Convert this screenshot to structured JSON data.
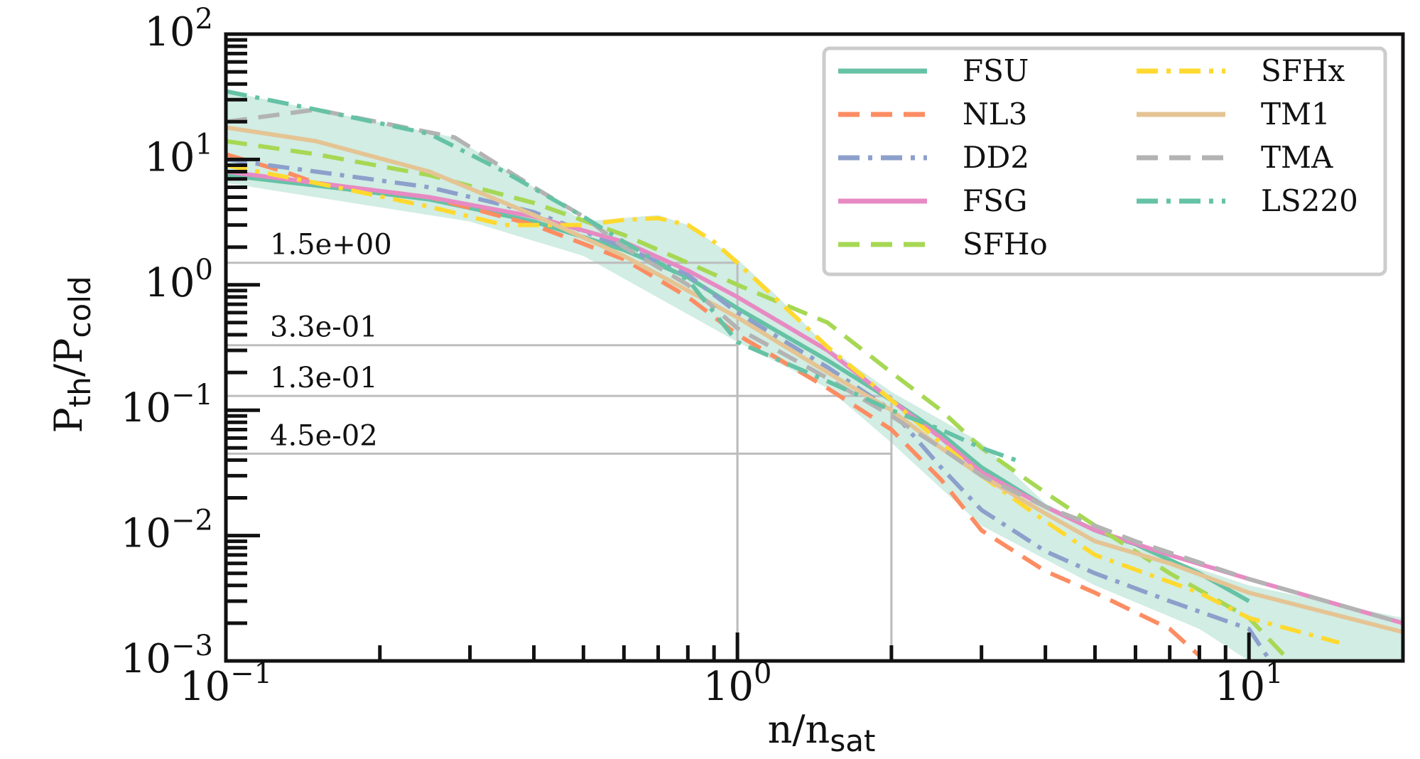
{
  "chart_data": {
    "type": "line",
    "xscale": "log",
    "yscale": "log",
    "xlim": [
      0.1,
      20
    ],
    "ylim": [
      0.001,
      100
    ],
    "xlabel_main": "n/n",
    "xlabel_sub": "sat",
    "ylabel_main": "P",
    "ylabel_sub1": "th",
    "ylabel_mid": "/P",
    "ylabel_sub2": "cold",
    "x_ticks": [
      {
        "value": 0.1,
        "base": "10",
        "exp": "−1"
      },
      {
        "value": 1,
        "base": "10",
        "exp": "0"
      },
      {
        "value": 10,
        "base": "10",
        "exp": "1"
      }
    ],
    "y_ticks": [
      {
        "value": 0.001,
        "base": "10",
        "exp": "−3"
      },
      {
        "value": 0.01,
        "base": "10",
        "exp": "−2"
      },
      {
        "value": 0.1,
        "base": "10",
        "exp": "−1"
      },
      {
        "value": 1,
        "base": "10",
        "exp": "0"
      },
      {
        "value": 10,
        "base": "10",
        "exp": "1"
      },
      {
        "value": 100,
        "base": "10",
        "exp": "2"
      }
    ],
    "reference_lines": [
      {
        "x": 1,
        "y": 1.5,
        "label": "1.5e+00"
      },
      {
        "x": 1,
        "y": 0.33,
        "label": "3.3e-01"
      },
      {
        "x": 2,
        "y": 0.13,
        "label": "1.3e-01"
      },
      {
        "x": 2,
        "y": 0.045,
        "label": "4.5e-02"
      }
    ],
    "legend_position": "top-right",
    "band": {
      "color": "#66c2a5",
      "opacity": 0.3,
      "upper": [
        [
          0.1,
          35
        ],
        [
          0.15,
          25
        ],
        [
          0.28,
          15
        ],
        [
          0.4,
          6
        ],
        [
          0.5,
          3.2
        ],
        [
          0.7,
          3.6
        ],
        [
          0.8,
          3.0
        ],
        [
          1.0,
          1.6
        ],
        [
          1.2,
          0.8
        ],
        [
          1.5,
          0.32
        ],
        [
          2,
          0.14
        ],
        [
          3,
          0.055
        ],
        [
          4,
          0.018
        ],
        [
          6,
          0.008
        ],
        [
          10,
          0.004
        ],
        [
          20,
          0.0022
        ]
      ],
      "lower": [
        [
          0.1,
          6.5
        ],
        [
          0.15,
          5.0
        ],
        [
          0.3,
          3.2
        ],
        [
          0.5,
          1.7
        ],
        [
          1.0,
          0.35
        ],
        [
          1.5,
          0.15
        ],
        [
          2,
          0.055
        ],
        [
          3,
          0.012
        ],
        [
          5,
          0.004
        ],
        [
          8,
          0.0018
        ],
        [
          10,
          0.001
        ],
        [
          20,
          0.001
        ]
      ]
    },
    "series": [
      {
        "name": "FSU",
        "color": "#66c2a5",
        "dash": "solid",
        "points": [
          [
            0.1,
            7.5
          ],
          [
            0.15,
            6.2
          ],
          [
            0.25,
            4.8
          ],
          [
            0.4,
            3.2
          ],
          [
            0.6,
            1.9
          ],
          [
            0.8,
            1.15
          ],
          [
            1,
            0.65
          ],
          [
            1.5,
            0.25
          ],
          [
            2,
            0.12
          ],
          [
            2.5,
            0.065
          ],
          [
            3,
            0.035
          ],
          [
            4,
            0.017
          ],
          [
            5,
            0.011
          ],
          [
            6,
            0.0085
          ],
          [
            8,
            0.005
          ],
          [
            10,
            0.003
          ]
        ]
      },
      {
        "name": "NL3",
        "color": "#fc8d62",
        "dash": "dashed",
        "points": [
          [
            0.1,
            11
          ],
          [
            0.13,
            8
          ],
          [
            0.15,
            6.5
          ],
          [
            0.25,
            5.0
          ],
          [
            0.4,
            3.0
          ],
          [
            0.6,
            1.6
          ],
          [
            0.8,
            0.8
          ],
          [
            1,
            0.4
          ],
          [
            1.5,
            0.15
          ],
          [
            2,
            0.07
          ],
          [
            2.5,
            0.028
          ],
          [
            3,
            0.011
          ],
          [
            4,
            0.0052
          ],
          [
            5,
            0.0035
          ],
          [
            7,
            0.0018
          ],
          [
            8,
            0.0011
          ]
        ]
      },
      {
        "name": "DD2",
        "color": "#8da0cb",
        "dash": "dashdot",
        "points": [
          [
            0.1,
            10
          ],
          [
            0.15,
            8
          ],
          [
            0.25,
            6
          ],
          [
            0.4,
            3.8
          ],
          [
            0.6,
            2.0
          ],
          [
            0.8,
            1.2
          ],
          [
            1,
            0.6
          ],
          [
            1.5,
            0.22
          ],
          [
            2,
            0.1
          ],
          [
            2.5,
            0.035
          ],
          [
            3,
            0.016
          ],
          [
            4,
            0.0075
          ],
          [
            5,
            0.005
          ],
          [
            7,
            0.003
          ],
          [
            10,
            0.0018
          ],
          [
            11,
            0.001
          ]
        ]
      },
      {
        "name": "FSG",
        "color": "#e78ac3",
        "dash": "solid",
        "points": [
          [
            0.1,
            8
          ],
          [
            0.15,
            6.5
          ],
          [
            0.25,
            5.0
          ],
          [
            0.4,
            3.5
          ],
          [
            0.6,
            2.2
          ],
          [
            0.8,
            1.3
          ],
          [
            1,
            0.8
          ],
          [
            1.5,
            0.3
          ],
          [
            2,
            0.12
          ],
          [
            2.5,
            0.06
          ],
          [
            3,
            0.032
          ],
          [
            4,
            0.017
          ],
          [
            5,
            0.011
          ],
          [
            7,
            0.007
          ],
          [
            10,
            0.0045
          ],
          [
            20,
            0.002
          ]
        ]
      },
      {
        "name": "SFHo",
        "color": "#a6d854",
        "dash": "dashed",
        "points": [
          [
            0.1,
            14
          ],
          [
            0.15,
            11
          ],
          [
            0.25,
            7.5
          ],
          [
            0.4,
            4.5
          ],
          [
            0.6,
            2.5
          ],
          [
            0.8,
            1.5
          ],
          [
            1,
            1.0
          ],
          [
            1.5,
            0.5
          ],
          [
            2,
            0.2
          ],
          [
            2.5,
            0.1
          ],
          [
            3,
            0.05
          ],
          [
            4,
            0.022
          ],
          [
            5,
            0.012
          ],
          [
            7,
            0.005
          ],
          [
            10,
            0.0022
          ],
          [
            12,
            0.001
          ]
        ]
      },
      {
        "name": "SFHx",
        "color": "#ffd92f",
        "dash": "dashdot",
        "points": [
          [
            0.1,
            9
          ],
          [
            0.15,
            6.5
          ],
          [
            0.25,
            4.2
          ],
          [
            0.35,
            3.0
          ],
          [
            0.5,
            3.0
          ],
          [
            0.6,
            3.3
          ],
          [
            0.7,
            3.4
          ],
          [
            0.8,
            3.0
          ],
          [
            0.9,
            2.2
          ],
          [
            1,
            1.5
          ],
          [
            1.2,
            0.75
          ],
          [
            1.5,
            0.32
          ],
          [
            2,
            0.12
          ],
          [
            2.5,
            0.055
          ],
          [
            3,
            0.03
          ],
          [
            4,
            0.013
          ],
          [
            5,
            0.007
          ],
          [
            8,
            0.0035
          ],
          [
            10,
            0.0022
          ],
          [
            15,
            0.0014
          ]
        ]
      },
      {
        "name": "TM1",
        "color": "#e5c494",
        "dash": "solid",
        "points": [
          [
            0.1,
            18
          ],
          [
            0.15,
            14
          ],
          [
            0.25,
            8
          ],
          [
            0.4,
            3.6
          ],
          [
            0.6,
            1.7
          ],
          [
            0.8,
            0.9
          ],
          [
            1,
            0.55
          ],
          [
            1.5,
            0.2
          ],
          [
            2,
            0.1
          ],
          [
            2.5,
            0.05
          ],
          [
            3,
            0.03
          ],
          [
            4,
            0.015
          ],
          [
            5,
            0.009
          ],
          [
            7,
            0.006
          ],
          [
            10,
            0.0035
          ],
          [
            20,
            0.0017
          ]
        ]
      },
      {
        "name": "TMA",
        "color": "#b3b3b3",
        "dash": "dashed",
        "points": [
          [
            0.1,
            20
          ],
          [
            0.15,
            25
          ],
          [
            0.28,
            15
          ],
          [
            0.4,
            6
          ],
          [
            0.5,
            3.5
          ],
          [
            0.6,
            2.0
          ],
          [
            0.8,
            1.0
          ],
          [
            1,
            0.45
          ],
          [
            1.5,
            0.18
          ],
          [
            2,
            0.09
          ],
          [
            2.5,
            0.05
          ],
          [
            3,
            0.03
          ],
          [
            4,
            0.017
          ],
          [
            6,
            0.009
          ],
          [
            10,
            0.0045
          ],
          [
            20,
            0.002
          ]
        ]
      },
      {
        "name": "LS220",
        "color": "#66c2a5",
        "dash": "dashdot",
        "points": [
          [
            0.1,
            35
          ],
          [
            0.15,
            25
          ],
          [
            0.25,
            16
          ],
          [
            0.35,
            8
          ],
          [
            0.5,
            3.5
          ],
          [
            0.6,
            2.2
          ],
          [
            0.8,
            1.1
          ],
          [
            1,
            0.35
          ],
          [
            1.5,
            0.17
          ],
          [
            2,
            0.1
          ],
          [
            2.5,
            0.07
          ],
          [
            3,
            0.05
          ],
          [
            3.5,
            0.04
          ]
        ]
      }
    ]
  }
}
